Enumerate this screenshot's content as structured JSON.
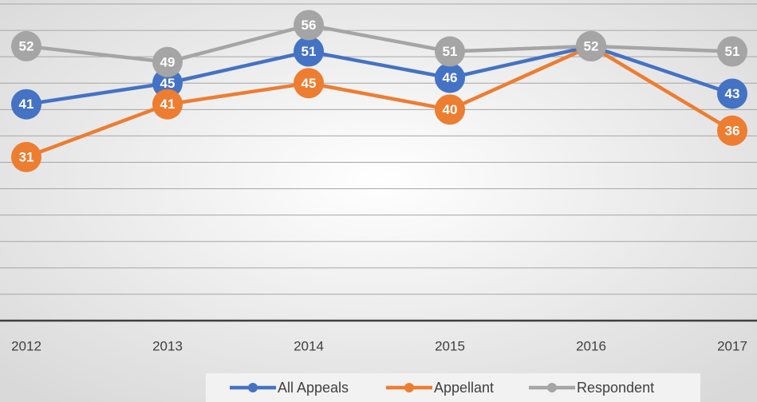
{
  "chart_data": {
    "type": "line",
    "categories": [
      "2012",
      "2013",
      "2014",
      "2015",
      "2016",
      "2017"
    ],
    "series": [
      {
        "name": "All Appeals",
        "color": "#4472c4",
        "values": [
          41,
          45,
          51,
          46,
          52,
          43
        ]
      },
      {
        "name": "Appellant",
        "color": "#ed7d31",
        "values": [
          31,
          41,
          45,
          40,
          52,
          36
        ]
      },
      {
        "name": "Respondent",
        "color": "#a5a5a5",
        "values": [
          52,
          49,
          56,
          51,
          52,
          51
        ]
      }
    ],
    "ylim": [
      0,
      60
    ],
    "yticks": [
      0,
      5,
      10,
      15,
      20,
      25,
      30,
      35,
      40,
      45,
      50,
      55,
      60
    ],
    "grid": true,
    "legend": "bottom"
  }
}
